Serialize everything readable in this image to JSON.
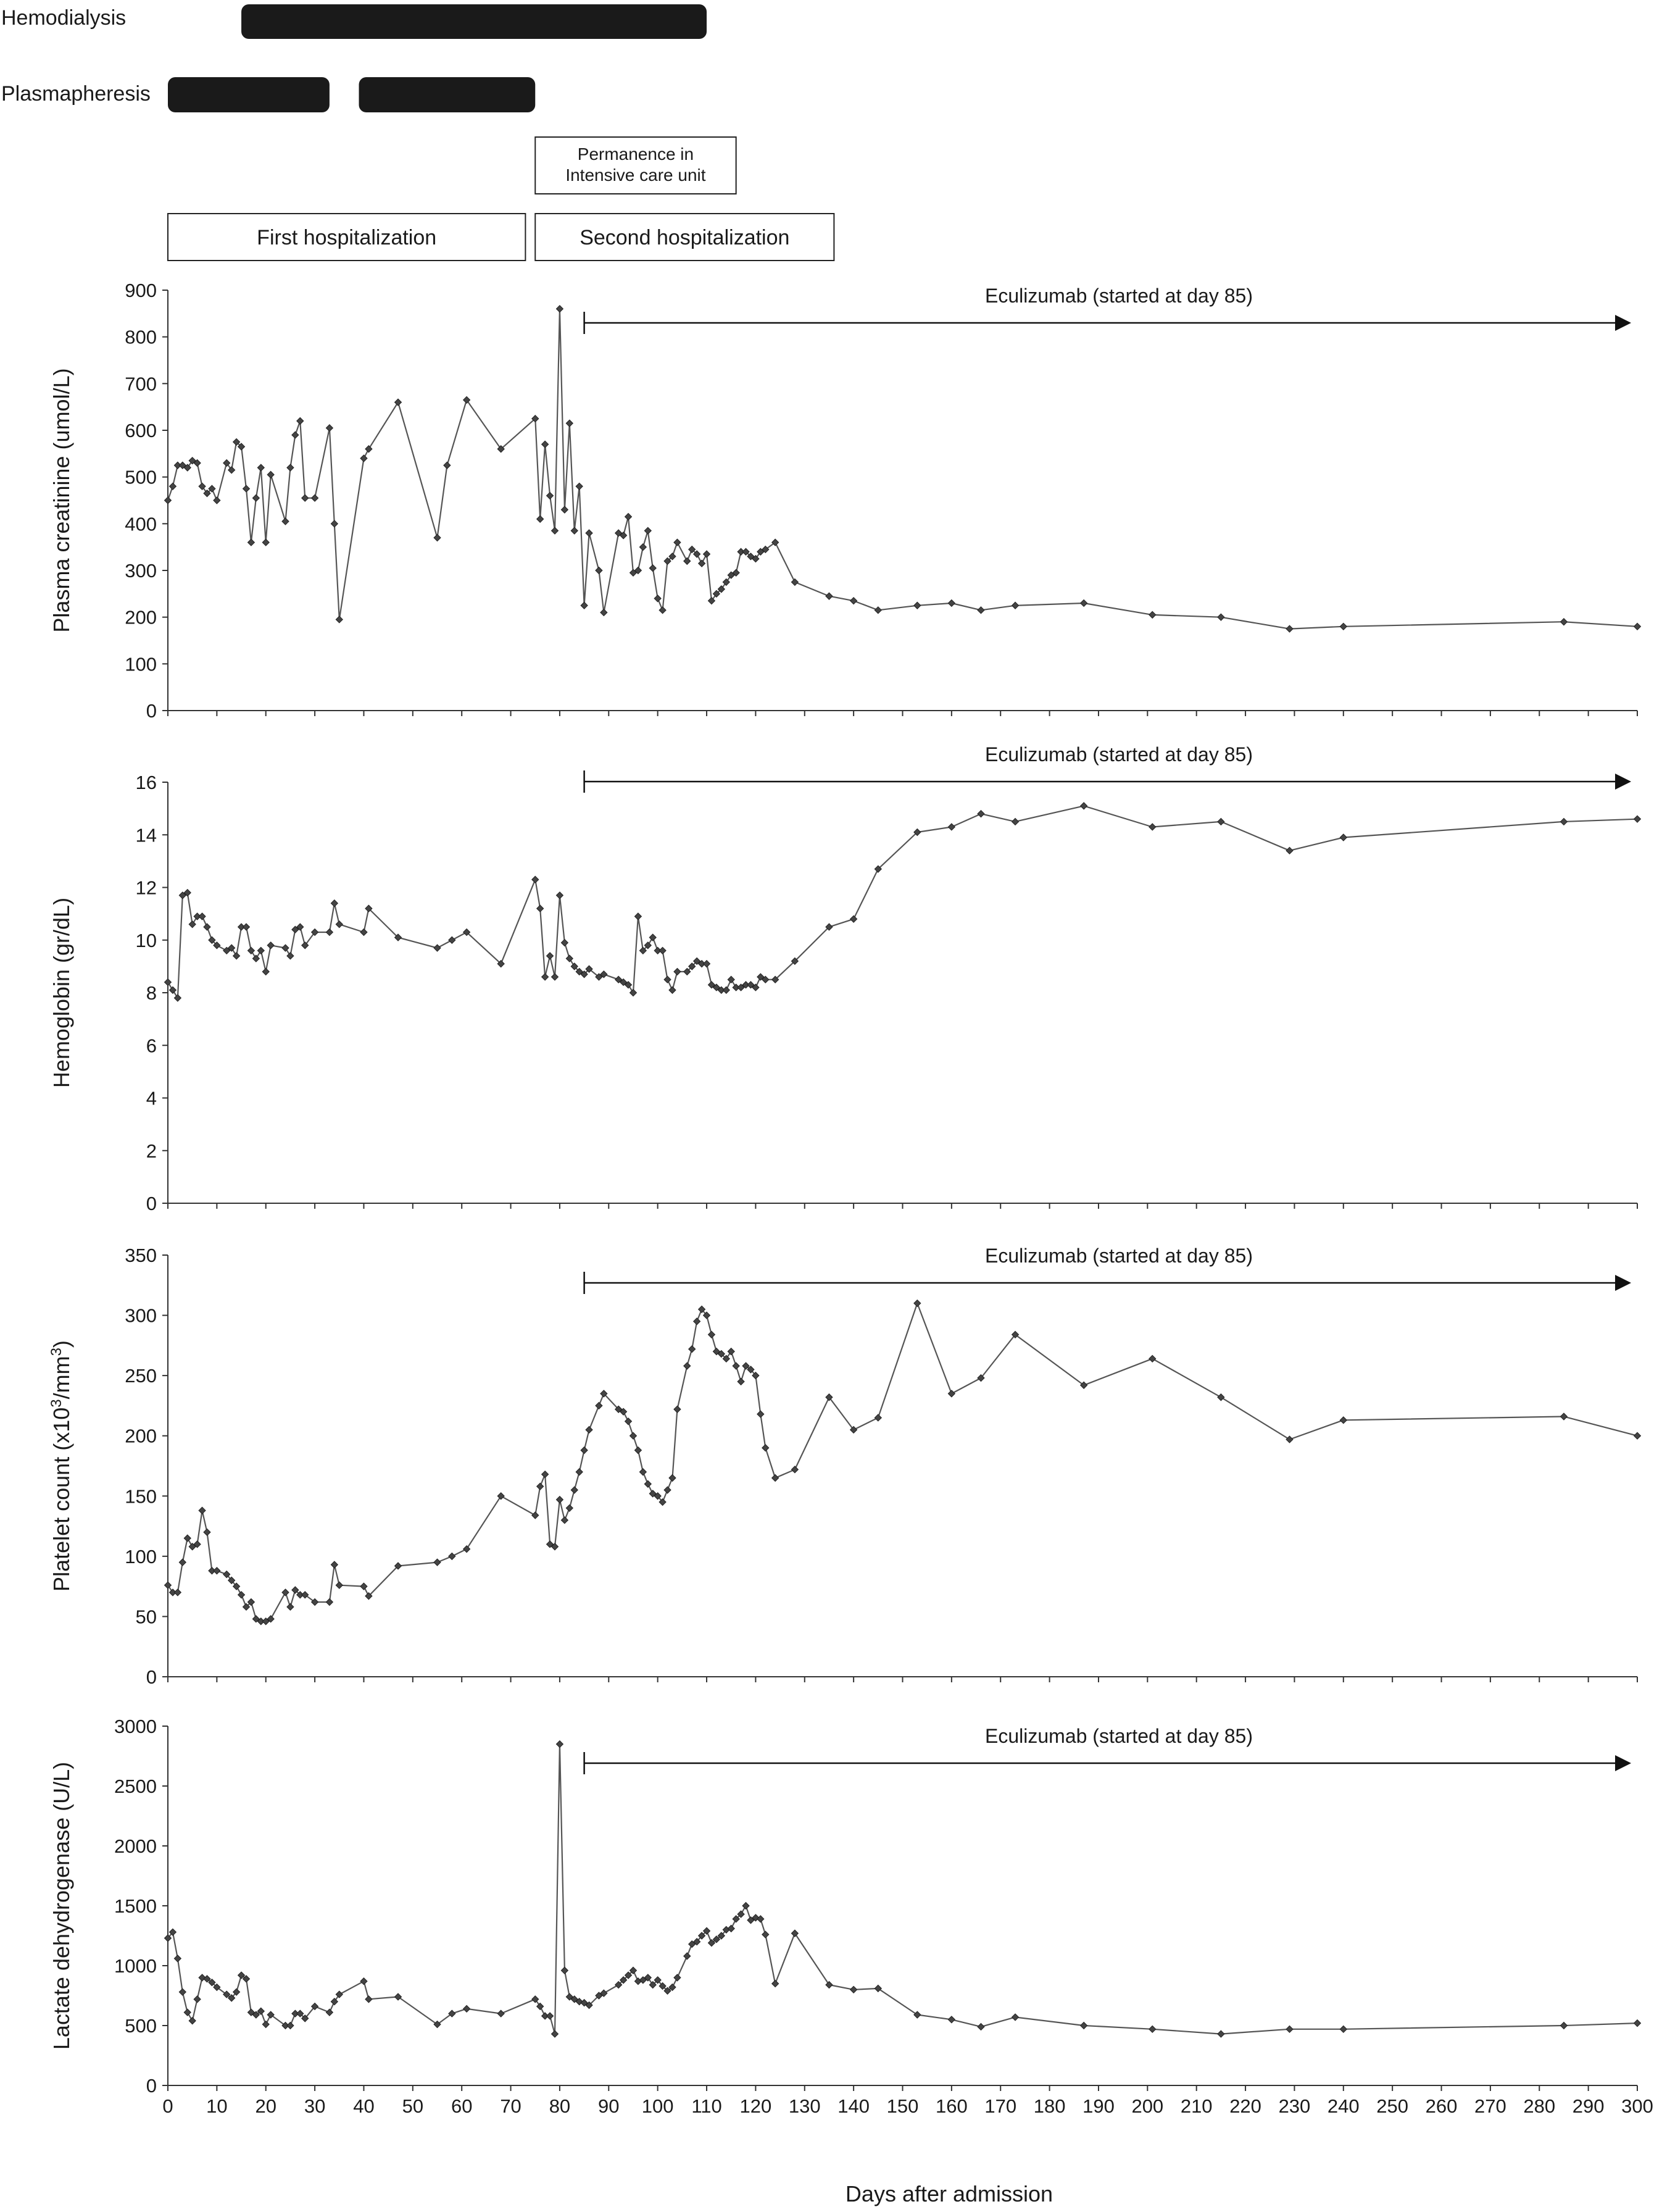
{
  "timeline": {
    "tracks": [
      {
        "label": "Hemodialysis",
        "bars": [
          [
            15,
            110
          ]
        ]
      },
      {
        "label": "Plasmapheresis",
        "bars": [
          [
            0,
            33
          ],
          [
            39,
            75
          ]
        ]
      }
    ],
    "boxes": [
      {
        "lines": [
          "Permanence in",
          "Intensive care unit"
        ],
        "start": 75,
        "end": 116
      },
      {
        "lines": [
          "First hospitalization"
        ],
        "start": 0,
        "end": 73
      },
      {
        "lines": [
          "Second hospitalization"
        ],
        "start": 75,
        "end": 136
      }
    ]
  },
  "xlabel": "Days after admission",
  "x_ticks": [
    0,
    10,
    20,
    30,
    40,
    50,
    60,
    70,
    80,
    90,
    100,
    110,
    120,
    130,
    140,
    150,
    160,
    170,
    180,
    190,
    200,
    210,
    220,
    230,
    240,
    250,
    260,
    270,
    280,
    290,
    300
  ],
  "xlim": [
    0,
    300
  ],
  "arrow_start_day": 85,
  "colors": {
    "line": "#555555",
    "marker": "#444444",
    "axis": "#333333",
    "bar": "#1a1a1a"
  },
  "chart_data": [
    {
      "type": "line",
      "ylabel": "Plasma creatinine (umol/L)",
      "ylim": [
        0,
        900
      ],
      "yticks": [
        0,
        100,
        200,
        300,
        400,
        500,
        600,
        700,
        800,
        900
      ],
      "annotation": "Eculizumab (started at day 85)",
      "x": [
        0,
        1,
        2,
        3,
        4,
        5,
        6,
        7,
        8,
        9,
        10,
        12,
        13,
        14,
        15,
        16,
        17,
        18,
        19,
        20,
        21,
        24,
        25,
        26,
        27,
        28,
        30,
        33,
        34,
        35,
        40,
        41,
        47,
        55,
        57,
        61,
        68,
        75,
        76,
        77,
        78,
        79,
        80,
        81,
        82,
        83,
        84,
        85,
        86,
        88,
        89,
        92,
        93,
        94,
        95,
        96,
        97,
        98,
        99,
        100,
        101,
        102,
        103,
        104,
        106,
        107,
        108,
        109,
        110,
        111,
        112,
        113,
        114,
        115,
        116,
        117,
        118,
        119,
        120,
        121,
        122,
        124,
        128,
        135,
        140,
        145,
        153,
        160,
        166,
        173,
        187,
        201,
        215,
        229,
        240,
        285,
        300
      ],
      "values": [
        450,
        480,
        525,
        525,
        520,
        535,
        530,
        480,
        465,
        475,
        450,
        530,
        515,
        575,
        565,
        475,
        360,
        455,
        520,
        360,
        505,
        405,
        520,
        590,
        620,
        455,
        455,
        605,
        400,
        195,
        540,
        560,
        660,
        370,
        525,
        665,
        560,
        625,
        410,
        570,
        460,
        385,
        860,
        430,
        615,
        385,
        480,
        225,
        380,
        300,
        210,
        380,
        375,
        415,
        295,
        300,
        350,
        385,
        305,
        240,
        215,
        320,
        330,
        360,
        320,
        345,
        335,
        315,
        335,
        235,
        250,
        260,
        275,
        290,
        295,
        340,
        340,
        330,
        325,
        340,
        345,
        360,
        275,
        245,
        235,
        215,
        225,
        230,
        215,
        225,
        230,
        205,
        200,
        175,
        180,
        190,
        180
      ]
    },
    {
      "type": "line",
      "ylabel": "Hemoglobin (gr/dL)",
      "ylim": [
        0,
        16
      ],
      "yticks": [
        0,
        2,
        4,
        6,
        8,
        10,
        12,
        14,
        16
      ],
      "annotation": "Eculizumab (started at day 85)",
      "x": [
        0,
        1,
        2,
        3,
        4,
        5,
        6,
        7,
        8,
        9,
        10,
        12,
        13,
        14,
        15,
        16,
        17,
        18,
        19,
        20,
        21,
        24,
        25,
        26,
        27,
        28,
        30,
        33,
        34,
        35,
        40,
        41,
        47,
        55,
        58,
        61,
        68,
        75,
        76,
        77,
        78,
        79,
        80,
        81,
        82,
        83,
        84,
        85,
        86,
        88,
        89,
        92,
        93,
        94,
        95,
        96,
        97,
        98,
        99,
        100,
        101,
        102,
        103,
        104,
        106,
        107,
        108,
        109,
        110,
        111,
        112,
        113,
        114,
        115,
        116,
        117,
        118,
        119,
        120,
        121,
        122,
        124,
        128,
        135,
        140,
        145,
        153,
        160,
        166,
        173,
        187,
        201,
        215,
        229,
        240,
        285,
        300
      ],
      "values": [
        8.4,
        8.1,
        7.8,
        11.7,
        11.8,
        10.6,
        10.9,
        10.9,
        10.5,
        10,
        9.8,
        9.6,
        9.7,
        9.4,
        10.5,
        10.5,
        9.6,
        9.3,
        9.6,
        8.8,
        9.8,
        9.7,
        9.4,
        10.4,
        10.5,
        9.8,
        10.3,
        10.3,
        11.4,
        10.6,
        10.3,
        11.2,
        10.1,
        9.7,
        10,
        10.3,
        9.1,
        12.3,
        11.2,
        8.6,
        9.4,
        8.6,
        11.7,
        9.9,
        9.3,
        9,
        8.8,
        8.7,
        8.9,
        8.6,
        8.7,
        8.5,
        8.4,
        8.3,
        8,
        10.9,
        9.6,
        9.8,
        10.1,
        9.6,
        9.6,
        8.5,
        8.1,
        8.8,
        8.8,
        9,
        9.2,
        9.1,
        9.1,
        8.3,
        8.2,
        8.1,
        8.1,
        8.5,
        8.2,
        8.2,
        8.3,
        8.3,
        8.2,
        8.6,
        8.5,
        8.5,
        9.2,
        10.5,
        10.8,
        12.7,
        14.1,
        14.3,
        14.8,
        14.5,
        15.1,
        14.3,
        14.5,
        13.4,
        13.9,
        14.5,
        14.6
      ]
    },
    {
      "type": "line",
      "ylabel": "Platelet count (x10³/mm³)",
      "ylim": [
        0,
        350
      ],
      "yticks": [
        0,
        50,
        100,
        150,
        200,
        250,
        300,
        350
      ],
      "annotation": "Eculizumab (started at day 85)",
      "x": [
        0,
        1,
        2,
        3,
        4,
        5,
        6,
        7,
        8,
        9,
        10,
        12,
        13,
        14,
        15,
        16,
        17,
        18,
        19,
        20,
        21,
        24,
        25,
        26,
        27,
        28,
        30,
        33,
        34,
        35,
        40,
        41,
        47,
        55,
        58,
        61,
        68,
        75,
        76,
        77,
        78,
        79,
        80,
        81,
        82,
        83,
        84,
        85,
        86,
        88,
        89,
        92,
        93,
        94,
        95,
        96,
        97,
        98,
        99,
        100,
        101,
        102,
        103,
        104,
        106,
        107,
        108,
        109,
        110,
        111,
        112,
        113,
        114,
        115,
        116,
        117,
        118,
        119,
        120,
        121,
        122,
        124,
        128,
        135,
        140,
        145,
        153,
        160,
        166,
        173,
        187,
        201,
        215,
        229,
        240,
        285,
        300
      ],
      "values": [
        76,
        70,
        70,
        95,
        115,
        108,
        110,
        138,
        120,
        88,
        88,
        85,
        80,
        75,
        68,
        58,
        62,
        48,
        46,
        46,
        48,
        70,
        58,
        72,
        68,
        68,
        62,
        62,
        93,
        76,
        75,
        67,
        92,
        95,
        100,
        106,
        150,
        134,
        158,
        168,
        110,
        108,
        147,
        130,
        140,
        155,
        170,
        188,
        205,
        225,
        235,
        222,
        220,
        212,
        200,
        188,
        170,
        160,
        152,
        150,
        145,
        155,
        165,
        222,
        258,
        272,
        295,
        305,
        300,
        284,
        270,
        268,
        264,
        270,
        258,
        245,
        258,
        255,
        250,
        218,
        190,
        165,
        172,
        232,
        205,
        215,
        310,
        235,
        248,
        284,
        242,
        264,
        232,
        197,
        213,
        216,
        200
      ]
    },
    {
      "type": "line",
      "ylabel": "Lactate dehydrogenase (U/L)",
      "ylim": [
        0,
        3000
      ],
      "yticks": [
        0,
        500,
        1000,
        1500,
        2000,
        2500,
        3000
      ],
      "annotation": "Eculizumab (started at day 85)",
      "x": [
        0,
        1,
        2,
        3,
        4,
        5,
        6,
        7,
        8,
        9,
        10,
        12,
        13,
        14,
        15,
        16,
        17,
        18,
        19,
        20,
        21,
        24,
        25,
        26,
        27,
        28,
        30,
        33,
        34,
        35,
        40,
        41,
        47,
        55,
        58,
        61,
        68,
        75,
        76,
        77,
        78,
        79,
        80,
        81,
        82,
        83,
        84,
        85,
        86,
        88,
        89,
        92,
        93,
        94,
        95,
        96,
        97,
        98,
        99,
        100,
        101,
        102,
        103,
        104,
        106,
        107,
        108,
        109,
        110,
        111,
        112,
        113,
        114,
        115,
        116,
        117,
        118,
        119,
        120,
        121,
        122,
        124,
        128,
        135,
        140,
        145,
        153,
        160,
        166,
        173,
        187,
        201,
        215,
        229,
        240,
        285,
        300
      ],
      "values": [
        1230,
        1280,
        1060,
        780,
        610,
        540,
        720,
        900,
        890,
        860,
        820,
        760,
        730,
        780,
        920,
        890,
        610,
        590,
        620,
        510,
        590,
        500,
        500,
        600,
        600,
        560,
        660,
        610,
        700,
        760,
        870,
        720,
        740,
        510,
        600,
        640,
        600,
        720,
        660,
        580,
        580,
        430,
        2850,
        960,
        740,
        720,
        700,
        690,
        670,
        750,
        770,
        840,
        880,
        920,
        960,
        870,
        880,
        900,
        840,
        880,
        830,
        790,
        820,
        900,
        1080,
        1180,
        1200,
        1250,
        1290,
        1190,
        1220,
        1250,
        1300,
        1310,
        1390,
        1430,
        1500,
        1380,
        1400,
        1390,
        1260,
        850,
        1270,
        840,
        800,
        810,
        590,
        550,
        490,
        570,
        500,
        470,
        430,
        470,
        470,
        500,
        520
      ]
    }
  ]
}
